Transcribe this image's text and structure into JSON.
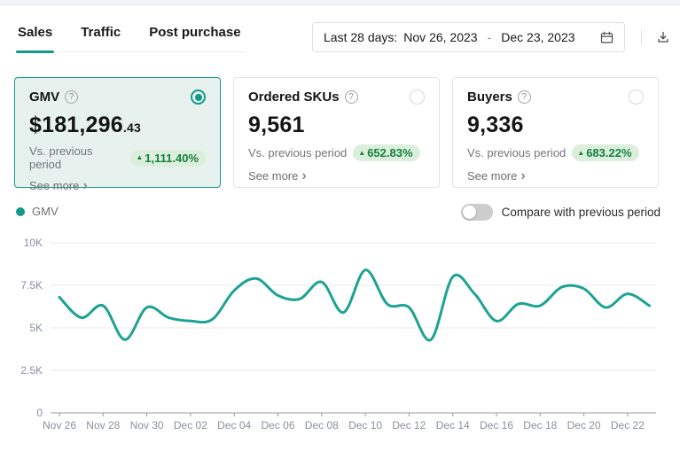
{
  "tabs": [
    {
      "label": "Sales",
      "active": true
    },
    {
      "label": "Traffic",
      "active": false
    },
    {
      "label": "Post purchase",
      "active": false
    }
  ],
  "toolbar": {
    "date_range": {
      "prefix": "Last 28 days:",
      "start": "Nov 26, 2023",
      "separator": "-",
      "end": "Dec 23, 2023"
    },
    "download_icon": "download-icon"
  },
  "cards": [
    {
      "title": "GMV",
      "value_main": "$181,296",
      "value_decimal": ".43",
      "compare_label": "Vs. previous period",
      "change_indicator": "▲",
      "change": "1,111.40%",
      "see_more": "See more",
      "selected": true
    },
    {
      "title": "Ordered SKUs",
      "value_main": "9,561",
      "value_decimal": "",
      "compare_label": "Vs. previous period",
      "change_indicator": "▲",
      "change": "652.83%",
      "see_more": "See more",
      "selected": false
    },
    {
      "title": "Buyers",
      "value_main": "9,336",
      "value_decimal": "",
      "compare_label": "Vs. previous period",
      "change_indicator": "▲",
      "change": "683.22%",
      "see_more": "See more",
      "selected": false
    }
  ],
  "legend": {
    "label": "GMV"
  },
  "toggle": {
    "label": "Compare with previous period",
    "state": "off"
  },
  "colors": {
    "accent_teal": "#12998a",
    "line_teal": "#1ca392",
    "selected_card_bg": "#e7f2ef",
    "badge_bg": "#dcefdd",
    "badge_text": "#15813f",
    "axis_label": "#8a8fa0",
    "gridline": "#eaeaea",
    "axis_line": "#9b9b9b"
  },
  "chart_data": {
    "type": "line",
    "title": "GMV trend, last 28 days",
    "x": [
      "Nov 26",
      "Nov 27",
      "Nov 28",
      "Nov 29",
      "Nov 30",
      "Dec 01",
      "Dec 02",
      "Dec 03",
      "Dec 04",
      "Dec 05",
      "Dec 06",
      "Dec 07",
      "Dec 08",
      "Dec 09",
      "Dec 10",
      "Dec 11",
      "Dec 12",
      "Dec 13",
      "Dec 14",
      "Dec 15",
      "Dec 16",
      "Dec 17",
      "Dec 18",
      "Dec 19",
      "Dec 20",
      "Dec 21",
      "Dec 22",
      "Dec 23"
    ],
    "series": [
      {
        "name": "GMV",
        "values": [
          6800,
          5600,
          6300,
          4300,
          6200,
          5600,
          5400,
          5500,
          7200,
          7900,
          6900,
          6700,
          7700,
          5900,
          8400,
          6400,
          6200,
          4300,
          8000,
          7000,
          5400,
          6400,
          6300,
          7400,
          7300,
          6200,
          7000,
          6300
        ]
      }
    ],
    "ylim": [
      0,
      10000
    ],
    "yticks": [
      {
        "value": 0,
        "label": "0"
      },
      {
        "value": 2500,
        "label": "2.5K"
      },
      {
        "value": 5000,
        "label": "5K"
      },
      {
        "value": 7500,
        "label": "7.5K"
      },
      {
        "value": 10000,
        "label": "10K"
      }
    ],
    "xticks": [
      {
        "index": 0,
        "label": "Nov 26"
      },
      {
        "index": 2,
        "label": "Nov 28"
      },
      {
        "index": 4,
        "label": "Nov 30"
      },
      {
        "index": 6,
        "label": "Dec 02"
      },
      {
        "index": 8,
        "label": "Dec 04"
      },
      {
        "index": 10,
        "label": "Dec 06"
      },
      {
        "index": 12,
        "label": "Dec 08"
      },
      {
        "index": 14,
        "label": "Dec 10"
      },
      {
        "index": 16,
        "label": "Dec 12"
      },
      {
        "index": 18,
        "label": "Dec 14"
      },
      {
        "index": 20,
        "label": "Dec 16"
      },
      {
        "index": 22,
        "label": "Dec 18"
      },
      {
        "index": 24,
        "label": "Dec 20"
      },
      {
        "index": 26,
        "label": "Dec 22"
      }
    ],
    "grid": true,
    "legend_position": "top-left",
    "smooth": true
  }
}
